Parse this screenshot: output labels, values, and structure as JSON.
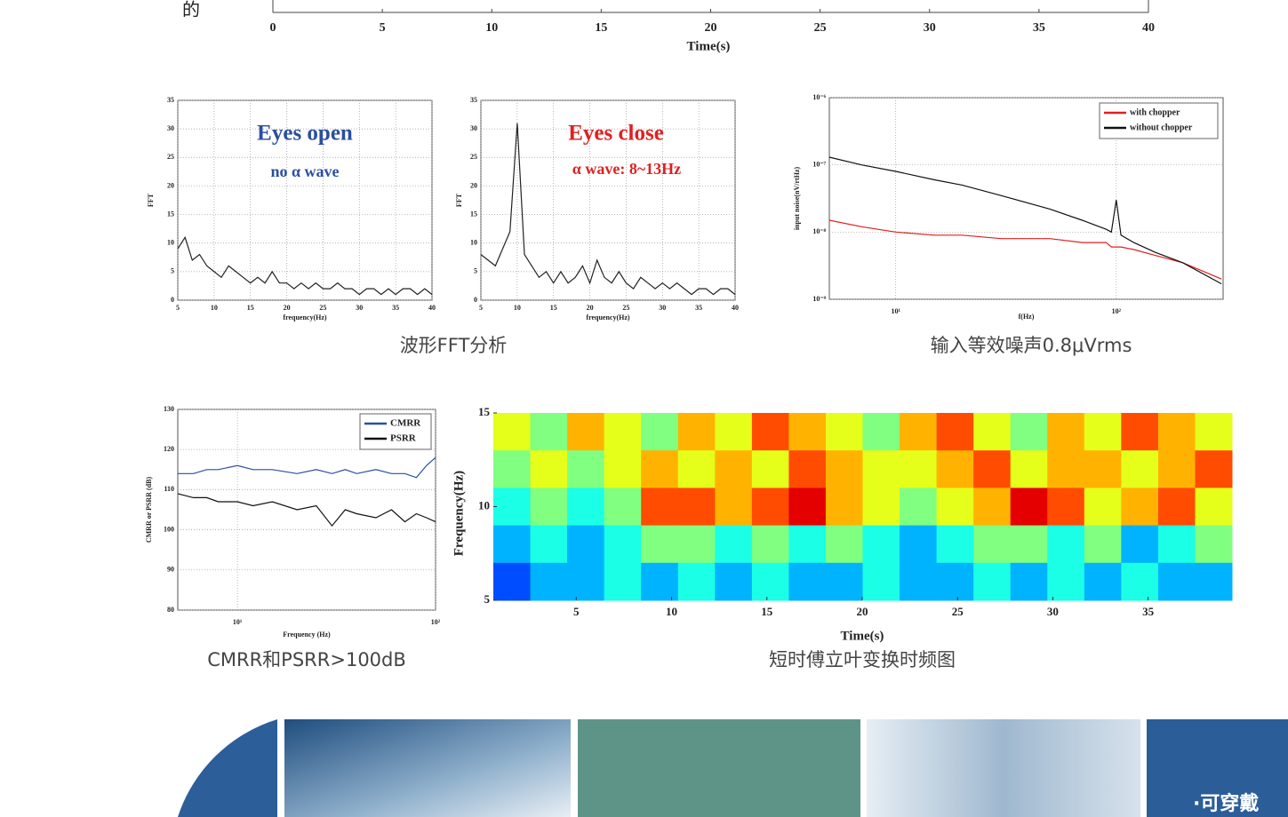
{
  "top_axis": {
    "fragment": "的",
    "label": "Time(s)",
    "xlim": [
      0,
      40
    ],
    "xticks": [
      0,
      5,
      10,
      15,
      20,
      25,
      30,
      35,
      40
    ]
  },
  "fft_open": {
    "title": "Eyes open",
    "subtitle": "no α wave",
    "xlabel": "frequency(Hz)",
    "ylabel": "FFT",
    "xlim": [
      5,
      40
    ],
    "ylim": [
      0,
      35
    ],
    "xticks": [
      5,
      10,
      15,
      20,
      25,
      30,
      35,
      40
    ],
    "yticks": [
      0,
      5,
      10,
      15,
      20,
      25,
      30,
      35
    ],
    "color": "#222222",
    "x": [
      5,
      6,
      7,
      8,
      9,
      10,
      11,
      12,
      13,
      14,
      15,
      16,
      17,
      18,
      19,
      20,
      21,
      22,
      23,
      24,
      25,
      26,
      27,
      28,
      29,
      30,
      31,
      32,
      33,
      34,
      35,
      36,
      37,
      38,
      39,
      40
    ],
    "values": [
      9,
      11,
      7,
      8,
      6,
      5,
      4,
      6,
      5,
      4,
      3,
      4,
      3,
      5,
      3,
      3,
      2,
      3,
      2,
      3,
      2,
      2,
      3,
      2,
      2,
      1,
      2,
      2,
      1,
      2,
      1,
      2,
      2,
      1,
      2,
      1
    ]
  },
  "fft_close": {
    "title": "Eyes close",
    "annotation": "α wave: 8~13Hz",
    "xlabel": "frequency(Hz)",
    "ylabel": "FFT",
    "xlim": [
      5,
      40
    ],
    "ylim": [
      0,
      35
    ],
    "xticks": [
      5,
      10,
      15,
      20,
      25,
      30,
      35,
      40
    ],
    "yticks": [
      0,
      5,
      10,
      15,
      20,
      25,
      30,
      35
    ],
    "color": "#222222",
    "x": [
      5,
      6,
      7,
      8,
      9,
      10,
      11,
      12,
      13,
      14,
      15,
      16,
      17,
      18,
      19,
      20,
      21,
      22,
      23,
      24,
      25,
      26,
      27,
      28,
      29,
      30,
      31,
      32,
      33,
      34,
      35,
      36,
      37,
      38,
      39,
      40
    ],
    "values": [
      8,
      7,
      6,
      9,
      12,
      31,
      8,
      6,
      4,
      5,
      3,
      5,
      3,
      4,
      6,
      3,
      7,
      4,
      3,
      5,
      3,
      2,
      4,
      3,
      2,
      3,
      2,
      3,
      2,
      1,
      2,
      2,
      1,
      2,
      2,
      1
    ]
  },
  "noise": {
    "xlabel": "f(Hz)",
    "ylabel": "input noise(nV/rtHz)",
    "xlog": true,
    "ylog": true,
    "xlim": [
      5,
      305
    ],
    "ylim": [
      1e-09,
      1e-06
    ],
    "xticks": [
      {
        "value": 10,
        "label": "10¹"
      },
      {
        "value": 100,
        "label": "10²"
      }
    ],
    "yticks": [
      {
        "value": 1e-09,
        "label": "10⁻⁹"
      },
      {
        "value": 1e-08,
        "label": "10⁻⁸"
      },
      {
        "value": 1e-07,
        "label": "10⁻⁷"
      },
      {
        "value": 1e-06,
        "label": "10⁻⁶"
      }
    ],
    "x": [
      5,
      7,
      10,
      15,
      20,
      30,
      50,
      70,
      90,
      95,
      100,
      105,
      120,
      150,
      200,
      300
    ],
    "series": [
      {
        "name": "with chopper",
        "color": "#e02020",
        "values": [
          1.5e-08,
          1.2e-08,
          1e-08,
          9e-09,
          9e-09,
          8e-09,
          8e-09,
          7e-09,
          7e-09,
          6e-09,
          6e-09,
          6e-09,
          5.5e-09,
          4.5e-09,
          3.5e-09,
          2e-09
        ]
      },
      {
        "name": "without chopper",
        "color": "#111111",
        "values": [
          1.3e-07,
          1e-07,
          8e-08,
          6e-08,
          5e-08,
          3.5e-08,
          2.2e-08,
          1.5e-08,
          1.1e-08,
          1e-08,
          3e-08,
          9e-09,
          7e-09,
          5e-09,
          3.5e-09,
          1.7e-09
        ]
      }
    ]
  },
  "cmrr": {
    "xlabel": "Frequency (Hz)",
    "ylabel": "CMRR or PSRR (dB)",
    "xlog": true,
    "xlim": [
      5,
      100
    ],
    "ylim": [
      80,
      130
    ],
    "xticks": [
      {
        "value": 10,
        "label": "10¹"
      },
      {
        "value": 100,
        "label": "10²"
      }
    ],
    "yticks": [
      80,
      90,
      100,
      110,
      120,
      130
    ],
    "x": [
      5,
      6,
      7,
      8,
      10,
      12,
      15,
      20,
      25,
      30,
      35,
      40,
      50,
      60,
      70,
      80,
      90,
      100
    ],
    "series": [
      {
        "name": "CMRR",
        "color": "#2a4fa0",
        "values": [
          114,
          114,
          115,
          115,
          116,
          115,
          115,
          114,
          115,
          114,
          115,
          114,
          115,
          114,
          114,
          113,
          116,
          118
        ]
      },
      {
        "name": "PSRR",
        "color": "#111111",
        "values": [
          109,
          108,
          108,
          107,
          107,
          106,
          107,
          105,
          106,
          101,
          105,
          104,
          103,
          105,
          102,
          104,
          103,
          102
        ]
      }
    ]
  },
  "stft": {
    "xlabel": "Time(s)",
    "ylabel": "Frequency(Hz)",
    "xlim": [
      0.65,
      39.4
    ],
    "ylim": [
      5,
      15
    ],
    "xticks": [
      5,
      10,
      15,
      20,
      25,
      30,
      35
    ],
    "yticks": [
      5,
      10,
      15
    ],
    "z": [
      [
        0.6,
        0.5,
        0.7,
        0.6,
        0.5,
        0.7,
        0.6,
        0.8,
        0.7,
        0.6,
        0.5,
        0.7,
        0.8,
        0.6,
        0.5,
        0.7,
        0.6,
        0.8,
        0.7,
        0.6
      ],
      [
        0.5,
        0.6,
        0.5,
        0.6,
        0.7,
        0.6,
        0.7,
        0.6,
        0.8,
        0.7,
        0.6,
        0.6,
        0.7,
        0.8,
        0.6,
        0.7,
        0.7,
        0.6,
        0.7,
        0.8
      ],
      [
        0.4,
        0.5,
        0.4,
        0.5,
        0.8,
        0.8,
        0.7,
        0.8,
        0.9,
        0.7,
        0.6,
        0.5,
        0.6,
        0.7,
        0.9,
        0.8,
        0.6,
        0.7,
        0.8,
        0.6
      ],
      [
        0.3,
        0.4,
        0.3,
        0.4,
        0.5,
        0.5,
        0.4,
        0.5,
        0.4,
        0.5,
        0.4,
        0.3,
        0.4,
        0.5,
        0.5,
        0.4,
        0.5,
        0.3,
        0.4,
        0.5
      ],
      [
        0.2,
        0.3,
        0.3,
        0.4,
        0.3,
        0.4,
        0.3,
        0.4,
        0.3,
        0.3,
        0.4,
        0.3,
        0.3,
        0.4,
        0.3,
        0.4,
        0.3,
        0.4,
        0.3,
        0.3
      ]
    ]
  },
  "captions": [
    "波形FFT分析",
    "输入等效噪声0.8μVrms",
    "CMRR和PSRR>100dB",
    "短时傅立叶变换时频图"
  ],
  "banner": {
    "text": "·可穿戴"
  }
}
